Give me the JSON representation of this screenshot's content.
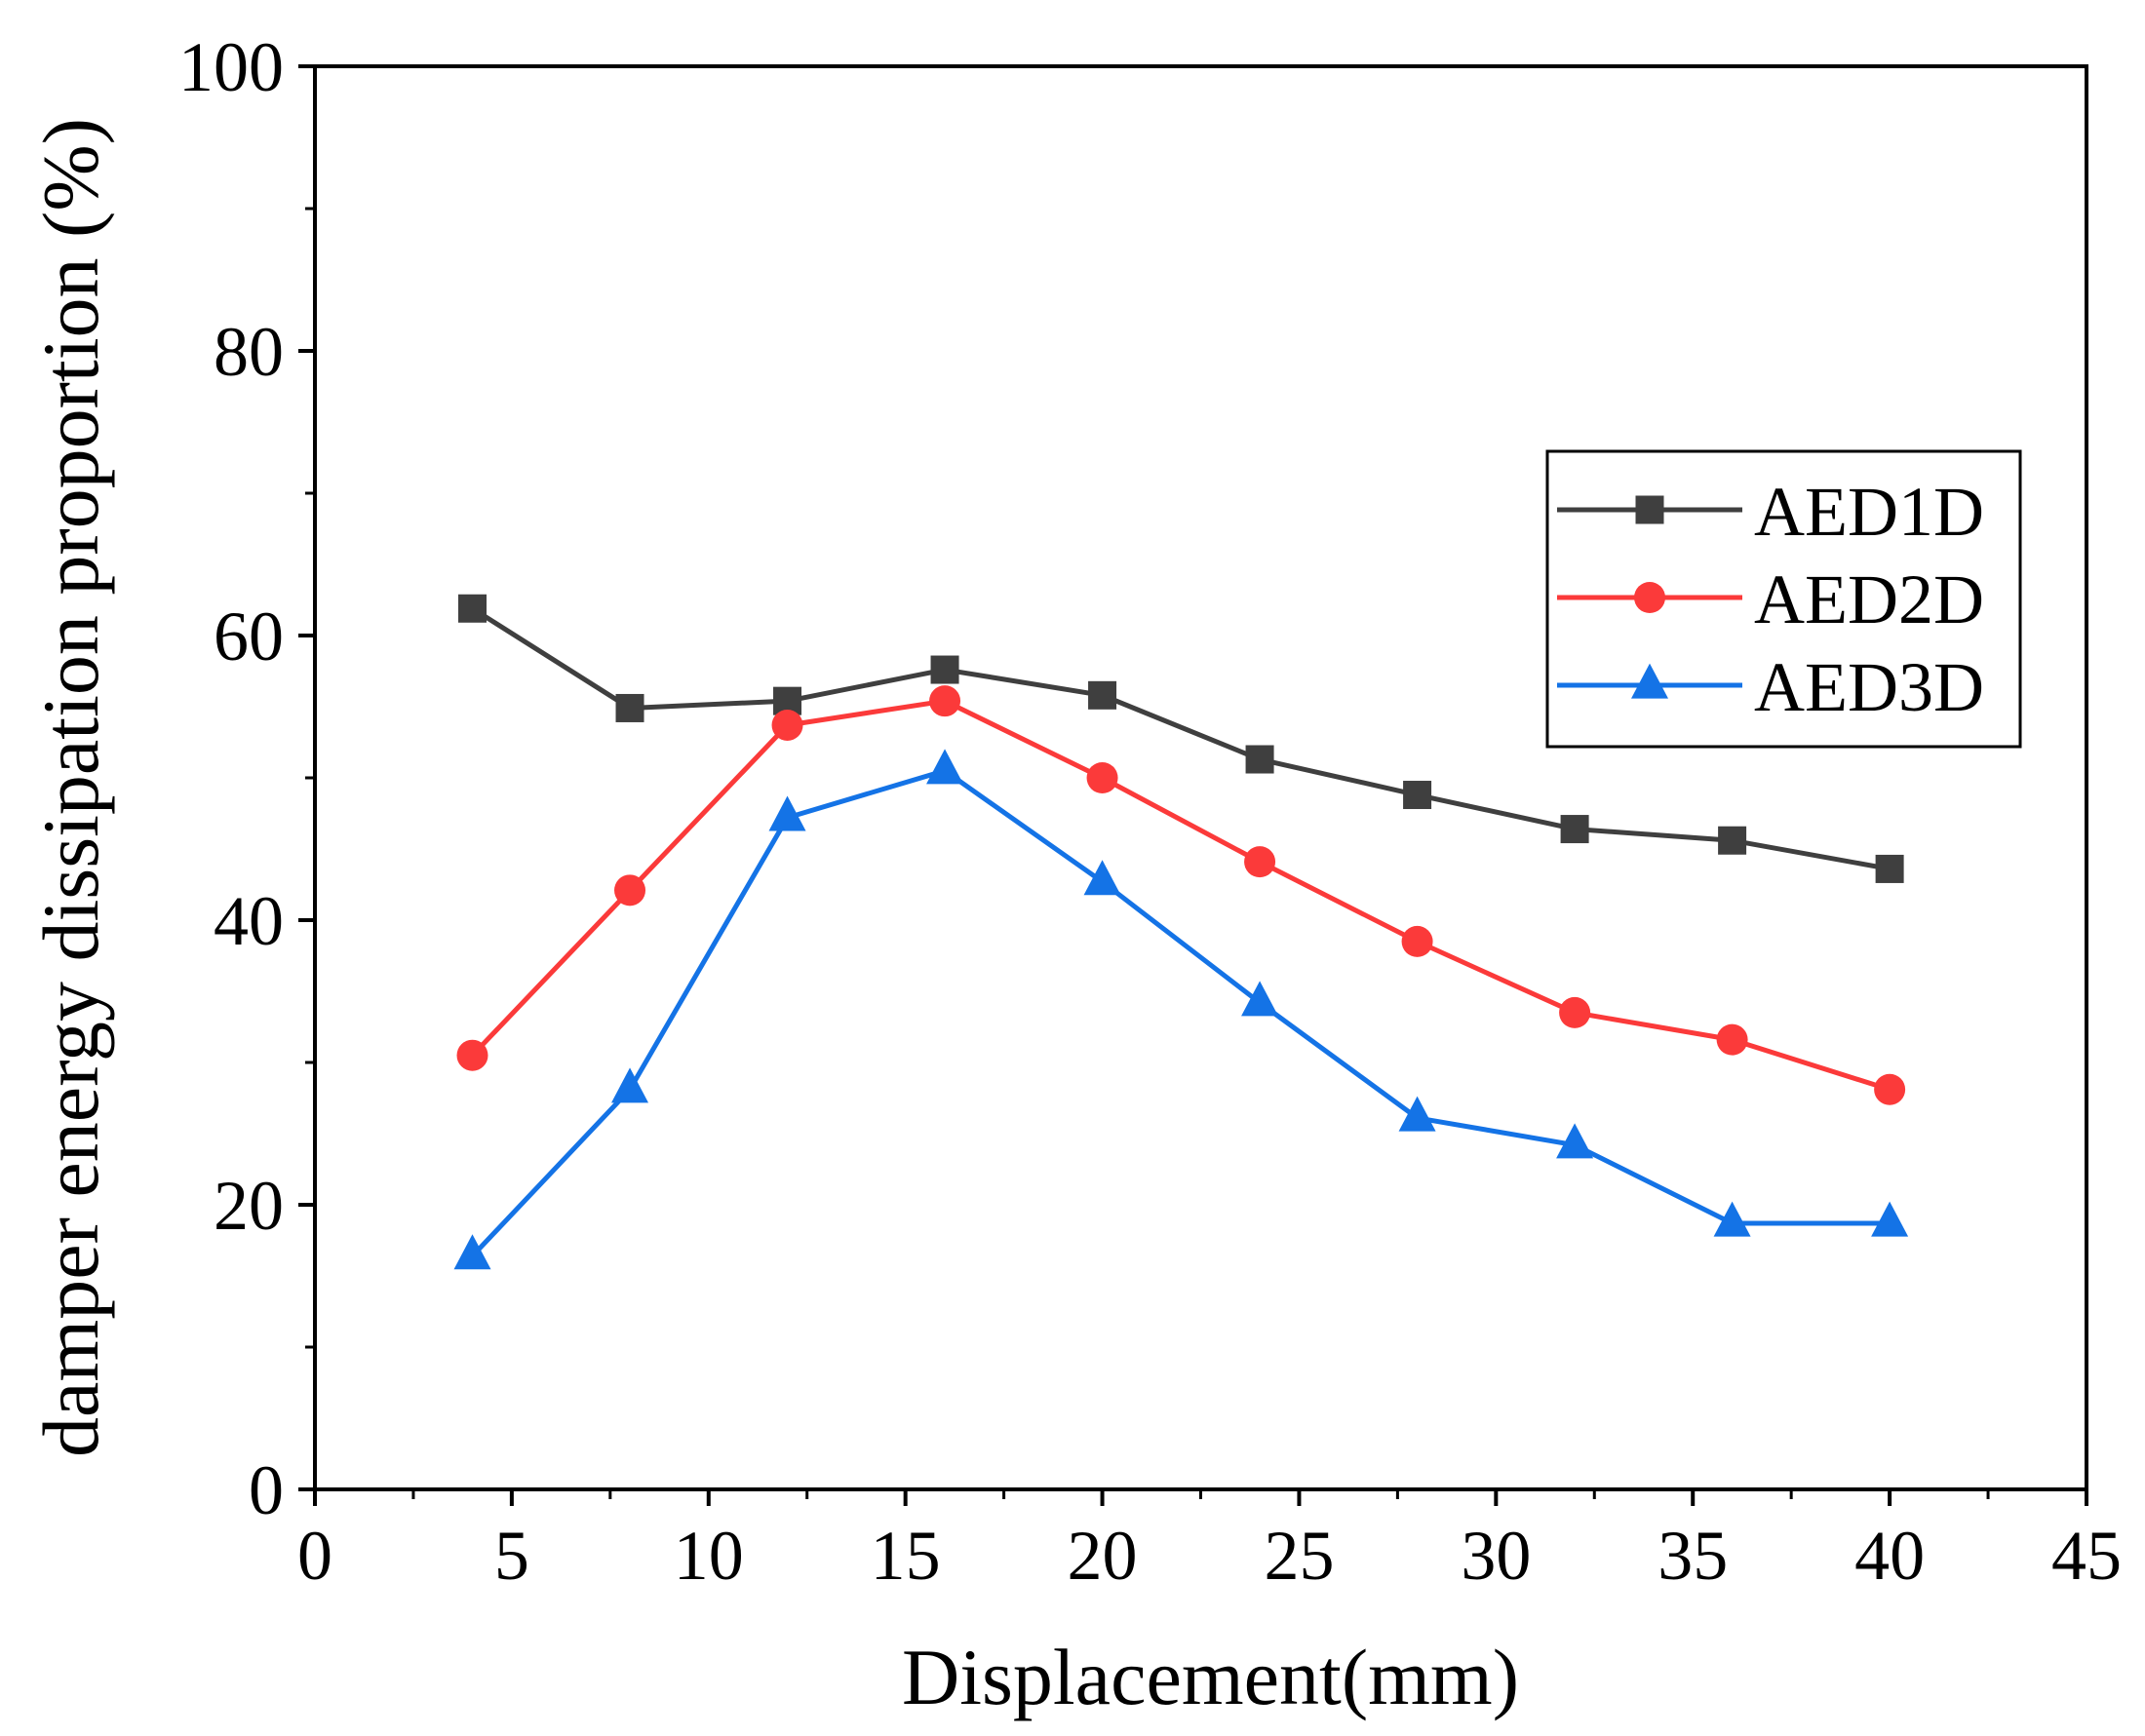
{
  "chart_data": {
    "type": "line",
    "title": "",
    "xlabel": "Displacement(mm)",
    "ylabel": "damper energy dissipation proportion (%)",
    "xlim": [
      0,
      45
    ],
    "ylim": [
      0,
      100
    ],
    "x_ticks": [
      "0",
      "5",
      "10",
      "15",
      "20",
      "25",
      "30",
      "35",
      "40",
      "45"
    ],
    "y_ticks": [
      "0",
      "20",
      "40",
      "60",
      "80",
      "100"
    ],
    "grid": false,
    "legend_position": "right",
    "x": [
      4,
      8,
      12,
      16,
      20,
      24,
      28,
      32,
      36,
      40
    ],
    "series": [
      {
        "name": "AED1D",
        "color": "#3f3f3f",
        "marker": "square",
        "values": [
          61.9,
          54.9,
          55.4,
          57.6,
          55.8,
          51.3,
          48.8,
          46.4,
          45.6,
          43.6
        ]
      },
      {
        "name": "AED2D",
        "color": "#fb3a3a",
        "marker": "circle",
        "values": [
          30.5,
          42.1,
          53.7,
          55.4,
          50.0,
          44.1,
          38.5,
          33.5,
          31.6,
          28.1
        ]
      },
      {
        "name": "AED3D",
        "color": "#1473e6",
        "marker": "triangle",
        "values": [
          16.4,
          28.1,
          47.2,
          50.5,
          42.7,
          34.2,
          26.1,
          24.2,
          18.7,
          18.7
        ]
      }
    ]
  }
}
